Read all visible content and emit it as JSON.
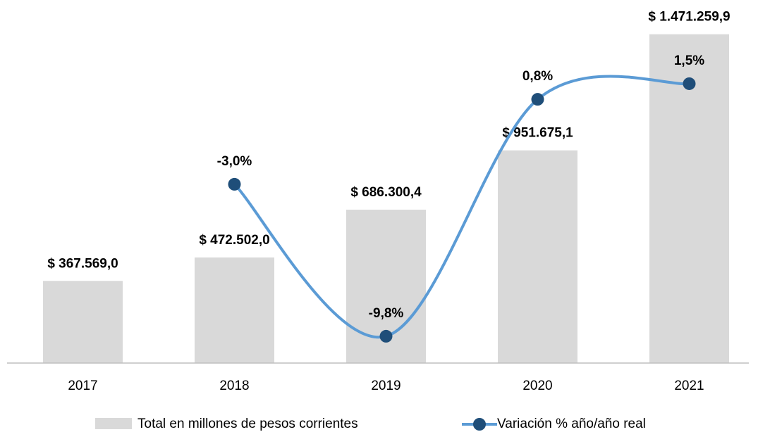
{
  "chart_data": {
    "type": "bar_line",
    "categories": [
      "2017",
      "2018",
      "2019",
      "2020",
      "2021"
    ],
    "series": [
      {
        "name": "Total en millones de pesos corrientes",
        "type": "bar",
        "color": "#d9d9d9",
        "values": [
          367569.0,
          472502.0,
          686300.4,
          951675.1,
          1471259.9
        ],
        "value_labels": [
          "$ 367.569,0",
          "$ 472.502,0",
          "$ 686.300,4",
          "$ 951.675,1",
          "$ 1.471.259,9"
        ]
      },
      {
        "name": "Variación % año/año real",
        "type": "line",
        "axis": "y2",
        "color": "#5b9bd5",
        "marker_color": "#1f4e79",
        "values": [
          null,
          -3.0,
          -9.8,
          0.8,
          1.5
        ],
        "value_labels": [
          null,
          "-3,0%",
          "-9,8%",
          "0,8%",
          "1,5%"
        ]
      }
    ],
    "ylim": [
      0,
      1530000
    ],
    "y2lim": [
      -11,
      4.3
    ],
    "legend": "bottom"
  }
}
